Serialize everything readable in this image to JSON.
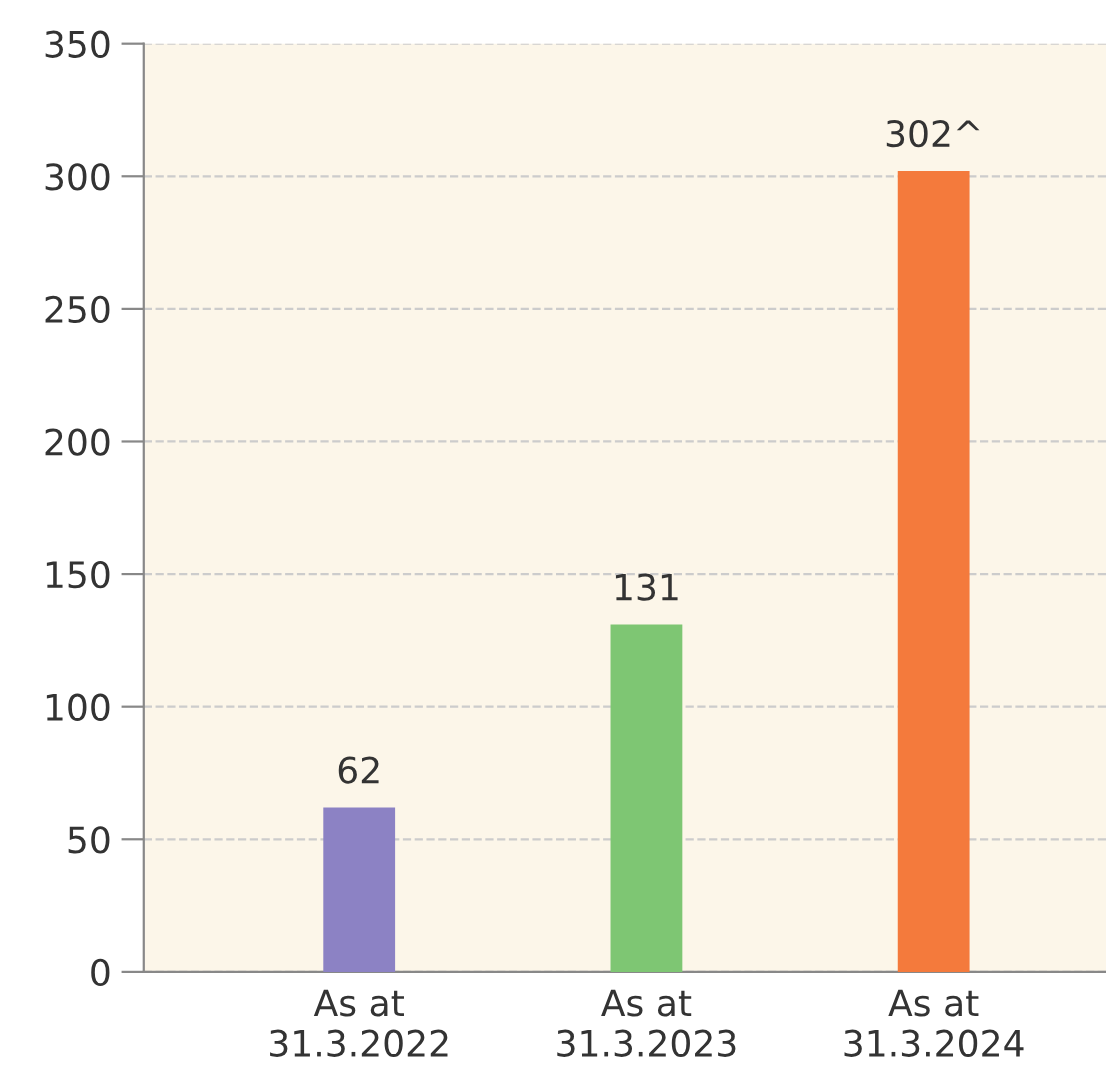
{
  "chart_data": {
    "type": "bar",
    "categories": [
      "As at\n31.3.2022",
      "As at\n31.3.2023",
      "As at\n31.3.2024"
    ],
    "values": [
      62,
      131,
      302
    ],
    "colors": [
      "#8c82c4",
      "#7ec673",
      "#f47a3c"
    ],
    "value_labels": [
      "62",
      "131",
      "302^"
    ],
    "ylim": [
      0,
      350
    ],
    "yticks": [
      0,
      50,
      100,
      150,
      200,
      250,
      300,
      350
    ],
    "grid": "y"
  }
}
